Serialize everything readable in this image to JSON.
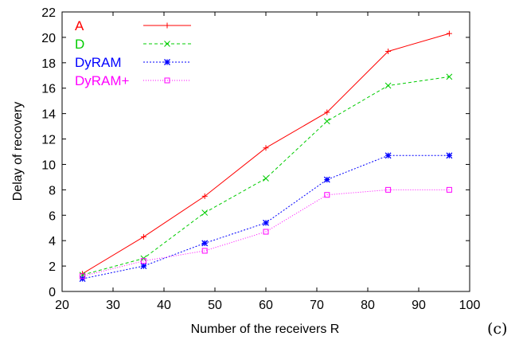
{
  "panel_tag": "(c)",
  "chart_data": {
    "type": "line",
    "title": "",
    "xlabel": "Number of the receivers R",
    "ylabel": "Delay of recovery",
    "xlim": [
      20,
      100
    ],
    "ylim": [
      0,
      22
    ],
    "xticks": [
      20,
      30,
      40,
      50,
      60,
      70,
      80,
      90,
      100
    ],
    "yticks": [
      0,
      2,
      4,
      6,
      8,
      10,
      12,
      14,
      16,
      18,
      20,
      22
    ],
    "grid": false,
    "legend_position": "top-left",
    "x": [
      24,
      36,
      48,
      60,
      72,
      84,
      96
    ],
    "series": [
      {
        "name": "A",
        "color": "#ff0000",
        "dash": "",
        "marker": "plus",
        "values": [
          1.4,
          4.3,
          7.5,
          11.3,
          14.1,
          18.9,
          20.3
        ]
      },
      {
        "name": "D",
        "color": "#00cc00",
        "dash": "4,3",
        "marker": "cross",
        "values": [
          1.3,
          2.6,
          6.2,
          8.9,
          13.4,
          16.2,
          16.9
        ]
      },
      {
        "name": "DyRAM",
        "color": "#0000ff",
        "dash": "2,2",
        "marker": "star",
        "values": [
          1.0,
          2.0,
          3.8,
          5.4,
          8.8,
          10.7,
          10.7
        ]
      },
      {
        "name": "DyRAM+",
        "color": "#ff00ff",
        "dash": "1,2",
        "marker": "square",
        "values": [
          1.2,
          2.4,
          3.2,
          4.7,
          7.6,
          8.0,
          8.0
        ]
      }
    ]
  }
}
